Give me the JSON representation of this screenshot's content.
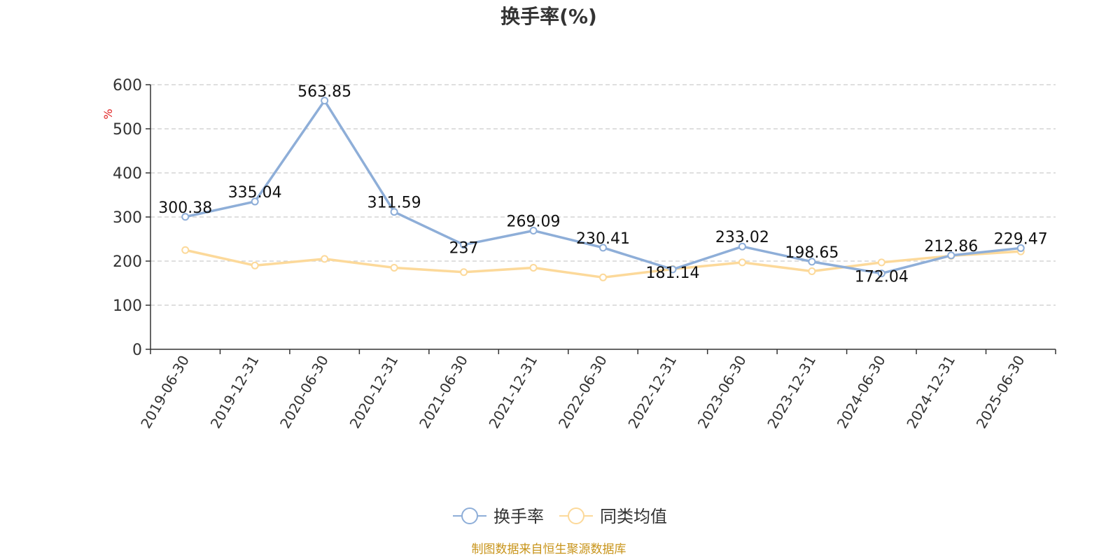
{
  "chart_data": {
    "type": "line",
    "title": "换手率(%)",
    "ylabel": "%",
    "ylim": [
      0,
      600
    ],
    "yticks": [
      0,
      100,
      200,
      300,
      400,
      500,
      600
    ],
    "grid": true,
    "legend_position": "bottom-center",
    "categories": [
      "2019-06-30",
      "2019-12-31",
      "2020-06-30",
      "2020-12-31",
      "2021-06-30",
      "2021-12-31",
      "2022-06-30",
      "2022-12-31",
      "2023-06-30",
      "2023-12-31",
      "2024-06-30",
      "2024-12-31",
      "2025-06-30"
    ],
    "series": [
      {
        "name": "换手率",
        "color": "#8eaed8",
        "values": [
          300.38,
          335.04,
          563.85,
          311.59,
          237,
          269.09,
          230.41,
          181.14,
          233.02,
          198.65,
          172.04,
          212.86,
          229.47
        ],
        "labels": [
          "300.38",
          "335.04",
          "563.85",
          "311.59",
          "237",
          "269.09",
          "230.41",
          "181.14",
          "233.02",
          "198.65",
          "172.04",
          "212.86",
          "229.47"
        ]
      },
      {
        "name": "同类均值",
        "color": "#fcd99a",
        "values": [
          225,
          190,
          205,
          185,
          175,
          185,
          163,
          182,
          197,
          177,
          197,
          212,
          222
        ]
      }
    ]
  },
  "colors": {
    "ylabel": "#e02020",
    "source": "#c8941a",
    "axis": "#333333",
    "grid": "#cccccc"
  },
  "source_text": "制图数据来自恒生聚源数据库"
}
